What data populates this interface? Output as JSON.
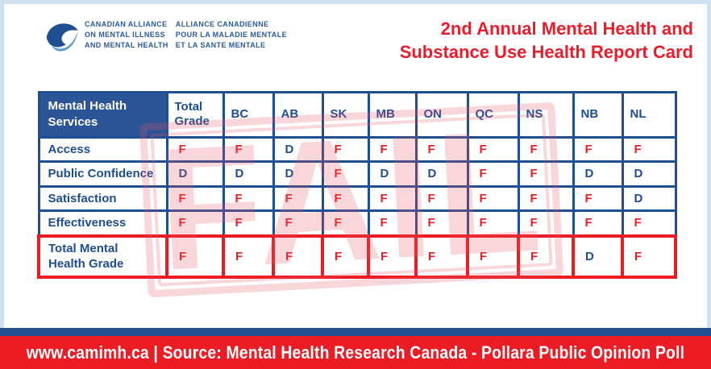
{
  "logo": {
    "en_lines": [
      "CANADIAN ALLIANCE",
      "ON MENTAL ILLNESS",
      "AND MENTAL HEALTH"
    ],
    "fr_lines": [
      "ALLIANCE CANADIENNE",
      "POUR LA MALADIE MENTALE",
      "ET LA SANTE MENTALE"
    ]
  },
  "title": {
    "line1": "2nd Annual Mental Health and",
    "line2": "Substance Use Health Report Card"
  },
  "report_card": {
    "corner_header": "Mental Health Services",
    "columns": [
      "Total Grade",
      "BC",
      "AB",
      "SK",
      "MB",
      "ON",
      "QC",
      "NS",
      "NB",
      "NL"
    ],
    "rows": [
      {
        "label": "Access",
        "grades": [
          "F",
          "F",
          "D",
          "F",
          "F",
          "F",
          "F",
          "F",
          "F",
          "F"
        ],
        "total": false
      },
      {
        "label": "Public Confidence",
        "grades": [
          "D",
          "D",
          "D",
          "F",
          "D",
          "D",
          "F",
          "F",
          "D",
          "D"
        ],
        "total": false
      },
      {
        "label": "Satisfaction",
        "grades": [
          "F",
          "F",
          "F",
          "F",
          "F",
          "F",
          "F",
          "F",
          "F",
          "D"
        ],
        "total": false
      },
      {
        "label": "Effectiveness",
        "grades": [
          "F",
          "F",
          "F",
          "F",
          "F",
          "F",
          "F",
          "F",
          "F",
          "F"
        ],
        "total": false
      },
      {
        "label": "Total Mental Health Grade",
        "grades": [
          "F",
          "F",
          "F",
          "F",
          "F",
          "F",
          "F",
          "F",
          "D",
          "F"
        ],
        "total": true
      }
    ]
  },
  "watermark": "FAIL",
  "footer": {
    "text": "www.camimh.ca | Source: Mental Health Research Canada - Pollara Public Opinion Poll"
  },
  "colors": {
    "blue": "#1d4e93",
    "header_bg": "#2b5597",
    "red": "#ec1c24",
    "page_border": "#cfe0f0",
    "footer_strip_blue": "#24508f",
    "logo_dark_blue": "#1f4e93",
    "logo_light_blue": "#5b9bd3",
    "stamp_pink": "rgba(232,85,95,0.24)"
  },
  "chart_data": {
    "type": "table",
    "title": "2nd Annual Mental Health and Substance Use Health Report Card",
    "row_header": "Mental Health Services",
    "columns": [
      "Total Grade",
      "BC",
      "AB",
      "SK",
      "MB",
      "ON",
      "QC",
      "NS",
      "NB",
      "NL"
    ],
    "rows": [
      {
        "label": "Access",
        "values": [
          "F",
          "F",
          "D",
          "F",
          "F",
          "F",
          "F",
          "F",
          "F",
          "F"
        ]
      },
      {
        "label": "Public Confidence",
        "values": [
          "D",
          "D",
          "D",
          "F",
          "D",
          "D",
          "F",
          "F",
          "D",
          "D"
        ]
      },
      {
        "label": "Satisfaction",
        "values": [
          "F",
          "F",
          "F",
          "F",
          "F",
          "F",
          "F",
          "F",
          "F",
          "D"
        ]
      },
      {
        "label": "Effectiveness",
        "values": [
          "F",
          "F",
          "F",
          "F",
          "F",
          "F",
          "F",
          "F",
          "F",
          "F"
        ]
      },
      {
        "label": "Total Mental Health Grade",
        "values": [
          "F",
          "F",
          "F",
          "F",
          "F",
          "F",
          "F",
          "F",
          "D",
          "F"
        ]
      }
    ],
    "annotations": [
      "FAIL stamp watermark across table"
    ],
    "source": "Mental Health Research Canada - Pollara Public Opinion Poll"
  }
}
